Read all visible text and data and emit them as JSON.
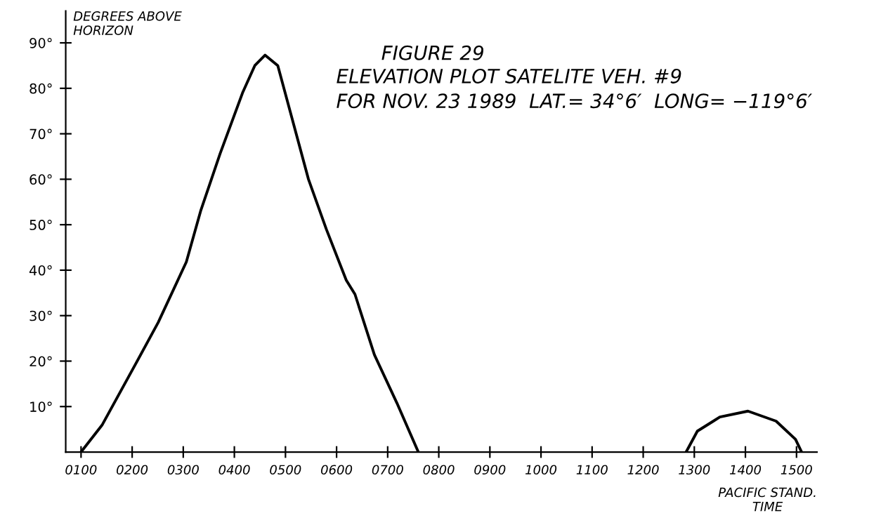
{
  "chart_data": {
    "type": "line",
    "title": "FIGURE 29",
    "subtitle": "ELEVATION PLOT SATELITE VEH. #9\nFOR NOV. 23 1989  LAT.= 34°6′  LONG= −119°6′",
    "xlabel": "PACIFIC STAND.\nTIME",
    "ylabel": "DEGREES ABOVE\nHORIZON",
    "series": [
      {
        "color": "#000000",
        "x": [
          100,
          141,
          206,
          251,
          306,
          334,
          372,
          416,
          440,
          460,
          485,
          509,
          545,
          580,
          619,
          636,
          674,
          718,
          760
        ],
        "values": [
          0,
          5.9,
          19.2,
          28.5,
          41.8,
          53,
          65.6,
          79,
          85,
          87.3,
          85,
          75,
          60,
          49,
          37.8,
          34.7,
          21.4,
          10.8,
          0
        ]
      },
      {
        "color": "#000000",
        "x": [
          1284,
          1306,
          1350,
          1405,
          1460,
          1498,
          1510
        ],
        "values": [
          0,
          4.6,
          7.7,
          9,
          6.8,
          2.8,
          0
        ]
      }
    ],
    "xlim": [
      70,
      1540
    ],
    "ylim": [
      0,
      97
    ],
    "xticks": [
      {
        "value": 100,
        "label": "0100"
      },
      {
        "value": 200,
        "label": "0200"
      },
      {
        "value": 300,
        "label": "0300"
      },
      {
        "value": 400,
        "label": "0400"
      },
      {
        "value": 500,
        "label": "0500"
      },
      {
        "value": 600,
        "label": "0600"
      },
      {
        "value": 700,
        "label": "0700"
      },
      {
        "value": 800,
        "label": "0800"
      },
      {
        "value": 900,
        "label": "0900"
      },
      1000,
      1100,
      1200,
      1300,
      1400,
      1500
    ],
    "yticks": [
      {
        "value": 10,
        "label": "10°"
      },
      {
        "value": 20,
        "label": "20°"
      },
      {
        "value": 30,
        "label": "30°"
      },
      {
        "value": 40,
        "label": "40°"
      },
      {
        "value": 50,
        "label": "50°"
      },
      {
        "value": 60,
        "label": "60°"
      },
      {
        "value": 70,
        "label": "70°"
      },
      {
        "value": 80,
        "label": "80°"
      },
      {
        "value": 90,
        "label": "90°"
      }
    ],
    "grid": false,
    "legend": false,
    "marker": "none",
    "line_style": "solid"
  }
}
